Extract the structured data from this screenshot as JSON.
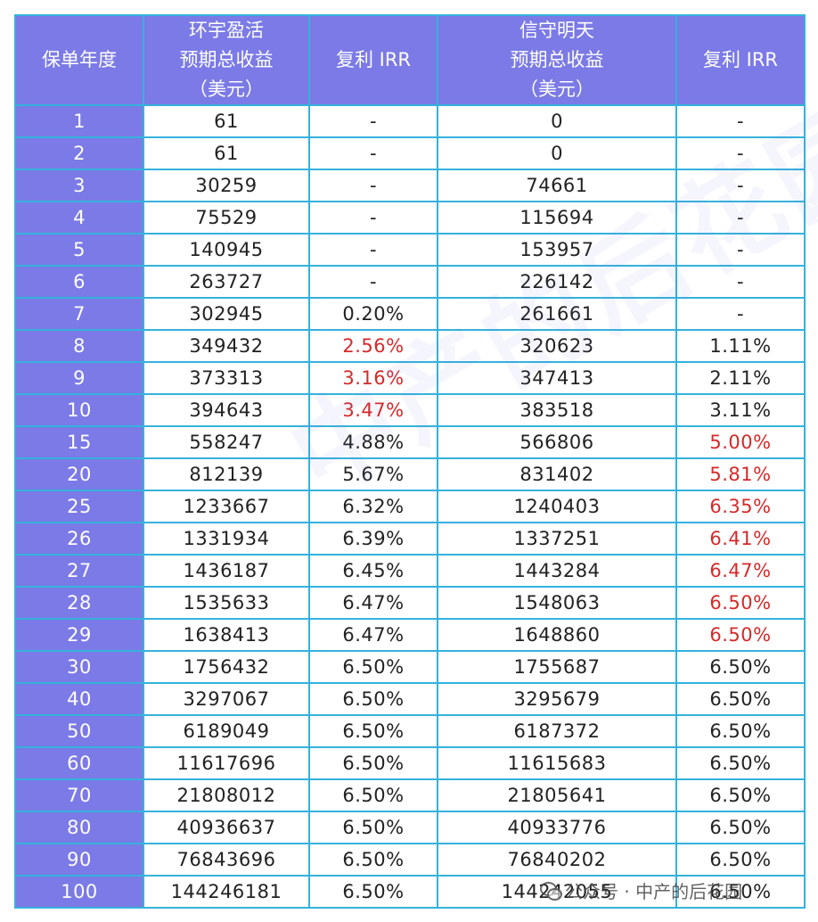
{
  "table": {
    "headers": [
      {
        "lines": [
          "保单年度"
        ]
      },
      {
        "lines": [
          "环宇盈活",
          "预期总收益",
          "（美元）"
        ]
      },
      {
        "lines": [
          "复利 IRR"
        ]
      },
      {
        "lines": [
          "信守明天",
          "预期总收益",
          "（美元）"
        ]
      },
      {
        "lines": [
          "复利 IRR"
        ]
      }
    ],
    "rows": [
      {
        "year": "1",
        "a_total": "61",
        "a_irr": "-",
        "b_total": "0",
        "b_irr": "-",
        "a_irr_red": false,
        "b_irr_red": false
      },
      {
        "year": "2",
        "a_total": "61",
        "a_irr": "-",
        "b_total": "0",
        "b_irr": "-",
        "a_irr_red": false,
        "b_irr_red": false
      },
      {
        "year": "3",
        "a_total": "30259",
        "a_irr": "-",
        "b_total": "74661",
        "b_irr": "-",
        "a_irr_red": false,
        "b_irr_red": false
      },
      {
        "year": "4",
        "a_total": "75529",
        "a_irr": "-",
        "b_total": "115694",
        "b_irr": "-",
        "a_irr_red": false,
        "b_irr_red": false
      },
      {
        "year": "5",
        "a_total": "140945",
        "a_irr": "-",
        "b_total": "153957",
        "b_irr": "-",
        "a_irr_red": false,
        "b_irr_red": false
      },
      {
        "year": "6",
        "a_total": "263727",
        "a_irr": "-",
        "b_total": "226142",
        "b_irr": "-",
        "a_irr_red": false,
        "b_irr_red": false
      },
      {
        "year": "7",
        "a_total": "302945",
        "a_irr": "0.20%",
        "b_total": "261661",
        "b_irr": "-",
        "a_irr_red": false,
        "b_irr_red": false
      },
      {
        "year": "8",
        "a_total": "349432",
        "a_irr": "2.56%",
        "b_total": "320623",
        "b_irr": "1.11%",
        "a_irr_red": true,
        "b_irr_red": false
      },
      {
        "year": "9",
        "a_total": "373313",
        "a_irr": "3.16%",
        "b_total": "347413",
        "b_irr": "2.11%",
        "a_irr_red": true,
        "b_irr_red": false
      },
      {
        "year": "10",
        "a_total": "394643",
        "a_irr": "3.47%",
        "b_total": "383518",
        "b_irr": "3.11%",
        "a_irr_red": true,
        "b_irr_red": false
      },
      {
        "year": "15",
        "a_total": "558247",
        "a_irr": "4.88%",
        "b_total": "566806",
        "b_irr": "5.00%",
        "a_irr_red": false,
        "b_irr_red": true
      },
      {
        "year": "20",
        "a_total": "812139",
        "a_irr": "5.67%",
        "b_total": "831402",
        "b_irr": "5.81%",
        "a_irr_red": false,
        "b_irr_red": true
      },
      {
        "year": "25",
        "a_total": "1233667",
        "a_irr": "6.32%",
        "b_total": "1240403",
        "b_irr": "6.35%",
        "a_irr_red": false,
        "b_irr_red": true
      },
      {
        "year": "26",
        "a_total": "1331934",
        "a_irr": "6.39%",
        "b_total": "1337251",
        "b_irr": "6.41%",
        "a_irr_red": false,
        "b_irr_red": true
      },
      {
        "year": "27",
        "a_total": "1436187",
        "a_irr": "6.45%",
        "b_total": "1443284",
        "b_irr": "6.47%",
        "a_irr_red": false,
        "b_irr_red": true
      },
      {
        "year": "28",
        "a_total": "1535633",
        "a_irr": "6.47%",
        "b_total": "1548063",
        "b_irr": "6.50%",
        "a_irr_red": false,
        "b_irr_red": true
      },
      {
        "year": "29",
        "a_total": "1638413",
        "a_irr": "6.47%",
        "b_total": "1648860",
        "b_irr": "6.50%",
        "a_irr_red": false,
        "b_irr_red": true
      },
      {
        "year": "30",
        "a_total": "1756432",
        "a_irr": "6.50%",
        "b_total": "1755687",
        "b_irr": "6.50%",
        "a_irr_red": false,
        "b_irr_red": false
      },
      {
        "year": "40",
        "a_total": "3297067",
        "a_irr": "6.50%",
        "b_total": "3295679",
        "b_irr": "6.50%",
        "a_irr_red": false,
        "b_irr_red": false
      },
      {
        "year": "50",
        "a_total": "6189049",
        "a_irr": "6.50%",
        "b_total": "6187372",
        "b_irr": "6.50%",
        "a_irr_red": false,
        "b_irr_red": false
      },
      {
        "year": "60",
        "a_total": "11617696",
        "a_irr": "6.50%",
        "b_total": "11615683",
        "b_irr": "6.50%",
        "a_irr_red": false,
        "b_irr_red": false
      },
      {
        "year": "70",
        "a_total": "21808012",
        "a_irr": "6.50%",
        "b_total": "21805641",
        "b_irr": "6.50%",
        "a_irr_red": false,
        "b_irr_red": false
      },
      {
        "year": "80",
        "a_total": "40936637",
        "a_irr": "6.50%",
        "b_total": "40933776",
        "b_irr": "6.50%",
        "a_irr_red": false,
        "b_irr_red": false
      },
      {
        "year": "90",
        "a_total": "76843696",
        "a_irr": "6.50%",
        "b_total": "76840202",
        "b_irr": "6.50%",
        "a_irr_red": false,
        "b_irr_red": false
      },
      {
        "year": "100",
        "a_total": "144246181",
        "a_irr": "6.50%",
        "b_total": "144242055",
        "b_irr": "6.50%",
        "a_irr_red": false,
        "b_irr_red": false
      }
    ]
  },
  "colors": {
    "header_bg": "#7b7ae6",
    "border": "#34b2dc",
    "highlight_text": "#d42a2a"
  },
  "watermark": {
    "text": "中产的后花园"
  },
  "footer": {
    "icon": "wechat-icon",
    "text": "公众号 · 中产的后花园"
  }
}
